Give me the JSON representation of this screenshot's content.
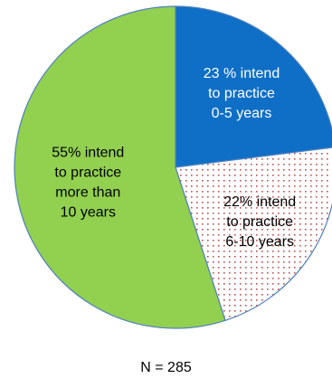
{
  "chart_data": {
    "type": "pie",
    "slices": [
      {
        "value": 23,
        "color": "#0f6fc6",
        "pattern": "solid",
        "label_lines": [
          "23 % intend",
          "to practice",
          "0-5 years"
        ],
        "label_color": "#ffffff"
      },
      {
        "value": 22,
        "color": "#ffffff",
        "pattern": "red-dotted",
        "pattern_color": "#c0504d",
        "label_lines": [
          "22% intend",
          "to practice",
          "6-10 years"
        ],
        "label_color": "#000000"
      },
      {
        "value": 55,
        "color": "#92d050",
        "pattern": "solid",
        "label_lines": [
          "55% intend",
          "to practice",
          "more than",
          "10 years"
        ],
        "label_color": "#000000"
      }
    ],
    "start_angle_deg": 0,
    "direction": "clockwise",
    "border_color": "#4f81bd",
    "note": "N = 285"
  }
}
